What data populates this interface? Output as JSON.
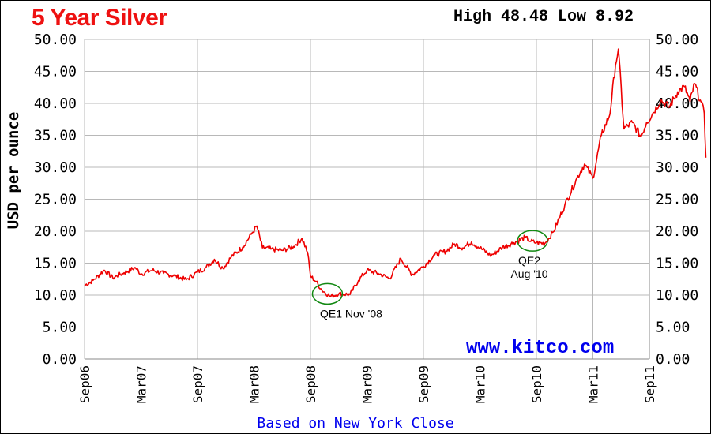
{
  "chart_data": {
    "type": "line",
    "title": "5 Year Silver",
    "range_text": "High 48.48 Low 8.92",
    "ylabel": "USD per ounce",
    "xlabel": "Based on New York Close",
    "watermark": "www.kitco.com",
    "ylim": [
      0,
      50
    ],
    "y_ticks": [
      "0.00",
      "5.00",
      "10.00",
      "15.00",
      "20.00",
      "25.00",
      "30.00",
      "35.00",
      "40.00",
      "45.00",
      "50.00"
    ],
    "x_ticks": [
      "Sep06",
      "Mar07",
      "Sep07",
      "Mar08",
      "Sep08",
      "Mar09",
      "Sep09",
      "Mar10",
      "Sep10",
      "Mar11",
      "Sep11"
    ],
    "grid": true,
    "series": [
      {
        "color": "#ee0000",
        "t": [
          0,
          0.15,
          0.35,
          0.5,
          0.7,
          0.9,
          1.0,
          1.2,
          1.4,
          1.6,
          1.8,
          2.0,
          2.15,
          2.3,
          2.45,
          2.6,
          2.8,
          2.95,
          3.05,
          3.15,
          3.3,
          3.5,
          3.7,
          3.85,
          3.95,
          4.0,
          4.1,
          4.2,
          4.35,
          4.5,
          4.7,
          4.85,
          5.0,
          5.2,
          5.4,
          5.6,
          5.8,
          6.0,
          6.2,
          6.4,
          6.55,
          6.7,
          6.85,
          7.0,
          7.2,
          7.4,
          7.6,
          7.8,
          7.9,
          8.0,
          8.15,
          8.3,
          8.5,
          8.7,
          8.85,
          9.0,
          9.15,
          9.3,
          9.4,
          9.45,
          9.55,
          9.7,
          9.85,
          9.95,
          10.05,
          10.2,
          10.35,
          10.5,
          10.62,
          10.72,
          10.8,
          10.9,
          10.97,
          11.0
        ],
        "values": [
          11.5,
          12.3,
          13.9,
          12.7,
          13.5,
          14.3,
          13.3,
          13.9,
          13.4,
          13.0,
          12.4,
          13.6,
          14.3,
          15.6,
          14.2,
          16.0,
          17.5,
          19.5,
          20.8,
          17.4,
          17.2,
          17.0,
          17.6,
          18.9,
          16.7,
          13.0,
          12.1,
          10.8,
          9.8,
          10.2,
          10.1,
          12.3,
          13.9,
          13.4,
          12.6,
          15.7,
          13.2,
          14.5,
          16.3,
          16.9,
          18.0,
          17.4,
          18.3,
          17.4,
          16.2,
          17.5,
          18.2,
          19.0,
          18.4,
          18.2,
          18.1,
          19.9,
          24.0,
          28.0,
          30.5,
          28.3,
          35.0,
          38.3,
          46.0,
          48.5,
          36.0,
          37.0,
          34.8,
          37.0,
          38.3,
          40.5,
          39.4,
          41.8,
          42.6,
          40.3,
          43.1,
          40.5,
          38.5,
          31.5
        ]
      }
    ],
    "annotations": [
      {
        "text": "QE1 Nov '08",
        "lines": [
          "QE1 Nov '08"
        ],
        "t": 4.3,
        "value": 10.2
      },
      {
        "text": "QE2 Aug '10",
        "lines": [
          "QE2",
          "Aug '10"
        ],
        "t": 7.93,
        "value": 18.5
      }
    ]
  }
}
